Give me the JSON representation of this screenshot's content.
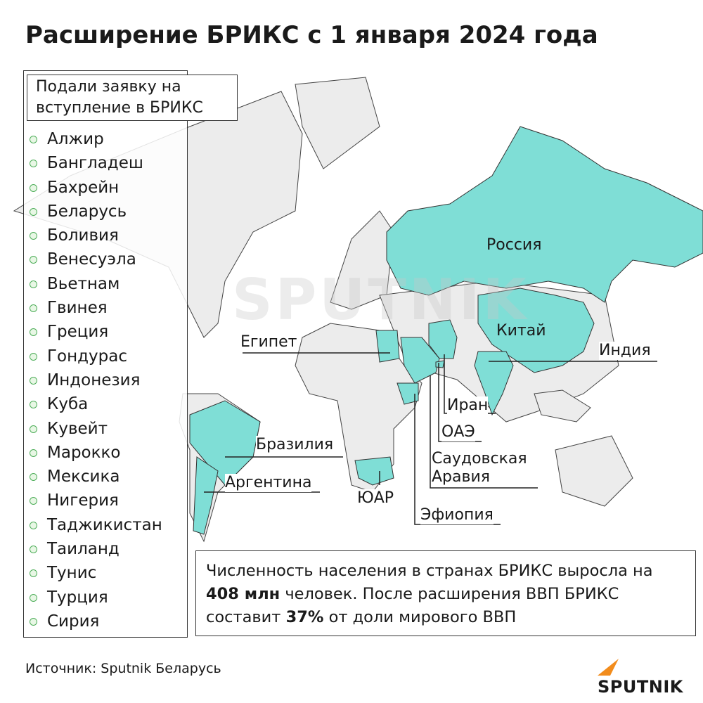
{
  "header": {
    "title": "Расширение БРИКС с 1 января 2024 года"
  },
  "applicants": {
    "heading": "Подали заявку на вступление в БРИКС",
    "countries": [
      "Алжир",
      "Бангладеш",
      "Бахрейн",
      "Беларусь",
      "Боливия",
      "Венесуэла",
      "Вьетнам",
      "Гвинея",
      "Греция",
      "Гондурас",
      "Индонезия",
      "Куба",
      "Кувейт",
      "Марокко",
      "Мексика",
      "Нигерия",
      "Таджикистан",
      "Таиланд",
      "Тунис",
      "Турция",
      "Сирия"
    ]
  },
  "map": {
    "labels": [
      "Россия",
      "Китай",
      "Индия",
      "Египет",
      "Иран",
      "ОАЭ",
      "Саудовская Аравия",
      "Бразилия",
      "Аргентина",
      "ЮАР",
      "Эфиопия"
    ],
    "watermark": "SPUTNIK"
  },
  "note": {
    "text_1": "Численность населения в странах БРИКС выросла на",
    "highlight_1": "408 млн",
    "text_2": "человек. После расширения ВВП БРИКС составит",
    "highlight_2": "37%",
    "text_3": "от доли мирового ВВП"
  },
  "footer": {
    "source_label": "Источник:",
    "source": "Sputnik Беларусь",
    "logo": "SPUTNIK"
  }
}
